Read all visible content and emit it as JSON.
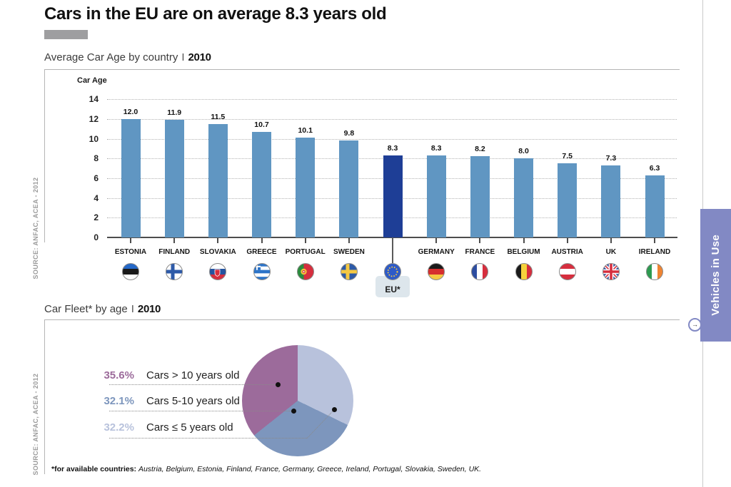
{
  "page": {
    "title": "Cars in the EU are on average 8.3 years old",
    "side_tab": {
      "label": "Vehicles in Use",
      "arrow_icon": "→"
    },
    "footnote": {
      "prefix": "*for available countries: ",
      "countries": "Austria, Belgium, Estonia, Finland, France, Germany, Greece, Ireland, Portugal, Slovakia, Sweden, UK."
    }
  },
  "bar_section": {
    "title": "Average Car Age by country",
    "separator": "I",
    "year": "2010",
    "y_axis_label": "Car Age",
    "source": "SOURCE: ANFAC, ACEA - 2012"
  },
  "pie_section": {
    "title": "Car Fleet* by age",
    "separator": "I",
    "year": "2010",
    "source": "SOURCE: ANFAC, ACEA - 2012"
  },
  "chart_data": [
    {
      "type": "bar",
      "title": "Average Car Age by country | 2010",
      "xlabel": "",
      "ylabel": "Car Age",
      "ylim": [
        0,
        14
      ],
      "yticks": [
        0,
        2,
        4,
        6,
        8,
        10,
        12,
        14
      ],
      "grid": "dotted-horizontal",
      "categories": [
        "ESTONIA",
        "FINLAND",
        "SLOVAKIA",
        "GREECE",
        "PORTUGAL",
        "SWEDEN",
        "EU*",
        "GERMANY",
        "FRANCE",
        "BELGIUM",
        "AUSTRIA",
        "UK",
        "IRELAND"
      ],
      "values": [
        12.0,
        11.9,
        11.5,
        10.7,
        10.1,
        9.8,
        8.3,
        8.3,
        8.2,
        8.0,
        7.5,
        7.3,
        6.3
      ],
      "flags": [
        "estonia",
        "finland",
        "slovakia",
        "greece",
        "portugal",
        "sweden",
        "eu",
        "germany",
        "france",
        "belgium",
        "austria",
        "uk",
        "ireland"
      ],
      "highlight_index": 6,
      "bar_color": "#6096c2",
      "highlight_color": "#1e3e96"
    },
    {
      "type": "pie",
      "title": "Car Fleet* by age | 2010",
      "slices": [
        {
          "label": "Cars > 10 years old",
          "value": 35.6,
          "color": "#9c6b9b"
        },
        {
          "label": "Cars 5-10 years old",
          "value": 32.1,
          "color": "#7d96bd"
        },
        {
          "label": "Cars ≤ 5 years old",
          "value": 32.2,
          "color": "#b8c2dc"
        }
      ],
      "draw_order": [
        2,
        1,
        0
      ],
      "start_angle": "top",
      "direction": "clockwise",
      "legend_position": "left"
    }
  ]
}
